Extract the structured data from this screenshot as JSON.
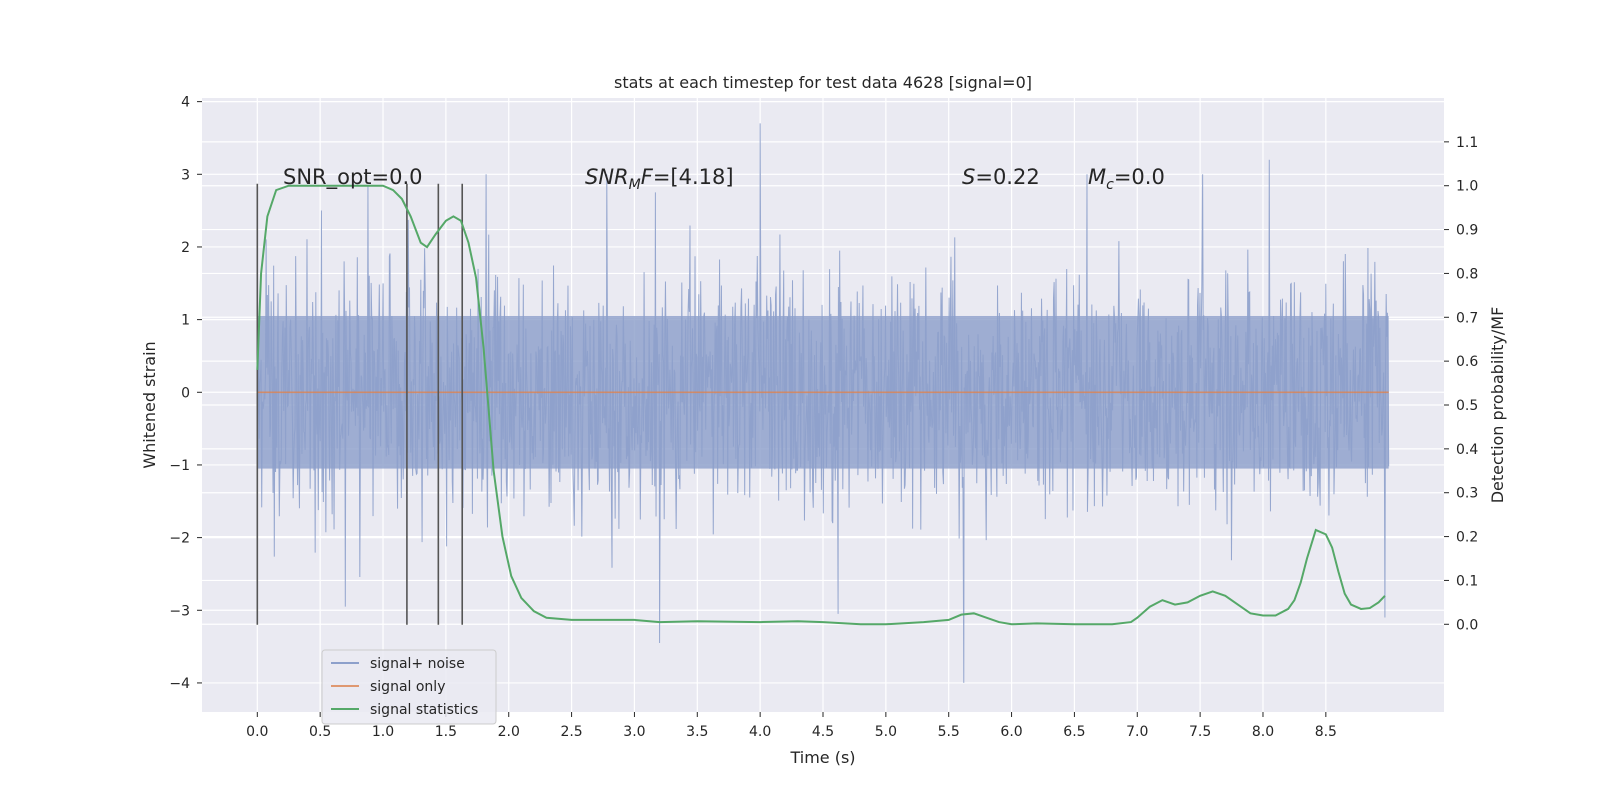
{
  "chart_data": {
    "type": "line",
    "title": "stats at each timestep for test data 4628 [signal=0]",
    "xlabel": "Time (s)",
    "ylabel": "Whitened strain",
    "y2label": "Detection probability/MF",
    "xlim": [
      -0.44,
      9.44
    ],
    "ylim": [
      -4.4,
      4.05
    ],
    "y2lim": [
      -0.2,
      1.2
    ],
    "xticks": [
      0.0,
      0.5,
      1.0,
      1.5,
      2.0,
      2.5,
      3.0,
      3.5,
      4.0,
      4.5,
      5.0,
      5.5,
      6.0,
      6.5,
      7.0,
      7.5,
      8.0,
      8.5
    ],
    "xtick_labels": [
      "0.0",
      "0.5",
      "1.0",
      "1.5",
      "2.0",
      "2.5",
      "3.0",
      "3.5",
      "4.0",
      "4.5",
      "5.0",
      "5.5",
      "6.0",
      "6.5",
      "7.0",
      "7.5",
      "8.0",
      "8.5"
    ],
    "yticks": [
      -4,
      -3,
      -2,
      -1,
      0,
      1,
      2,
      3,
      4
    ],
    "ytick_labels": [
      "−4",
      "−3",
      "−2",
      "−1",
      "0",
      "1",
      "2",
      "3",
      "4"
    ],
    "y2ticks": [
      0.0,
      0.1,
      0.2,
      0.3,
      0.4,
      0.5,
      0.6,
      0.7,
      0.8,
      0.9,
      1.0,
      1.1
    ],
    "y2tick_labels": [
      "0.0",
      "0.1",
      "0.2",
      "0.3",
      "0.4",
      "0.5",
      "0.6",
      "0.7",
      "0.8",
      "0.9",
      "1.0",
      "1.1"
    ],
    "grid": true,
    "legend_position": "lower-left",
    "noise": {
      "t_start": 0.0,
      "t_end": 9.0,
      "num_samples": 1800,
      "core_amplitude": 1.05,
      "typical_peak": 2.1,
      "max": 3.7,
      "min": -4.0,
      "seed": 4628,
      "spikes": [
        {
          "t": 4.0,
          "v": 3.7
        },
        {
          "t": 5.62,
          "v": -4.0
        },
        {
          "t": 3.2,
          "v": -3.45
        },
        {
          "t": 8.05,
          "v": 3.2
        },
        {
          "t": 2.78,
          "v": 3.0
        },
        {
          "t": 8.97,
          "v": -3.1
        },
        {
          "t": 4.62,
          "v": -3.05
        },
        {
          "t": 0.7,
          "v": -2.95
        },
        {
          "t": 0.88,
          "v": 2.85
        },
        {
          "t": 6.6,
          "v": 3.0
        },
        {
          "t": 7.52,
          "v": 3.0
        },
        {
          "t": 1.82,
          "v": 3.0
        }
      ]
    },
    "series": [
      {
        "name": "signal+ noise",
        "color": "#8da0cb",
        "axis": "left"
      },
      {
        "name": "signal only",
        "color": "#dd8452",
        "axis": "left",
        "x": [
          0.0,
          9.0
        ],
        "y": [
          0.0,
          0.0
        ]
      },
      {
        "name": "signal statistics",
        "color": "#55a868",
        "axis": "right",
        "x": [
          0.0,
          0.03,
          0.08,
          0.15,
          0.25,
          0.4,
          0.6,
          0.8,
          1.0,
          1.08,
          1.15,
          1.22,
          1.3,
          1.35,
          1.42,
          1.5,
          1.56,
          1.62,
          1.68,
          1.74,
          1.8,
          1.88,
          1.95,
          2.02,
          2.1,
          2.2,
          2.3,
          2.5,
          2.8,
          3.0,
          3.2,
          3.5,
          4.0,
          4.3,
          4.5,
          4.8,
          5.0,
          5.3,
          5.5,
          5.6,
          5.7,
          5.8,
          5.9,
          6.0,
          6.2,
          6.5,
          6.8,
          6.95,
          7.0,
          7.1,
          7.2,
          7.3,
          7.4,
          7.5,
          7.6,
          7.7,
          7.8,
          7.9,
          8.0,
          8.1,
          8.2,
          8.25,
          8.3,
          8.35,
          8.42,
          8.5,
          8.55,
          8.6,
          8.65,
          8.7,
          8.78,
          8.85,
          8.92,
          8.97
        ],
        "y": [
          0.58,
          0.8,
          0.93,
          0.99,
          1.0,
          1.0,
          1.0,
          1.0,
          1.0,
          0.99,
          0.97,
          0.93,
          0.87,
          0.86,
          0.89,
          0.92,
          0.93,
          0.92,
          0.87,
          0.79,
          0.63,
          0.35,
          0.2,
          0.11,
          0.06,
          0.03,
          0.015,
          0.01,
          0.01,
          0.01,
          0.005,
          0.007,
          0.005,
          0.007,
          0.005,
          0.0,
          0.0,
          0.005,
          0.01,
          0.022,
          0.025,
          0.015,
          0.005,
          0.0,
          0.002,
          0.0,
          0.0,
          0.005,
          0.015,
          0.04,
          0.055,
          0.045,
          0.05,
          0.065,
          0.075,
          0.065,
          0.045,
          0.025,
          0.02,
          0.02,
          0.035,
          0.055,
          0.095,
          0.15,
          0.215,
          0.205,
          0.175,
          0.12,
          0.07,
          0.045,
          0.035,
          0.037,
          0.05,
          0.065
        ]
      }
    ],
    "vlines": [
      0.0,
      1.19,
      1.44,
      1.63
    ],
    "vline_color": "#555555",
    "vline_range": [
      -3.2,
      2.87
    ],
    "annotations": {
      "snr_opt": "SNR_opt=0.0",
      "snr_mf_base": "SNR",
      "snr_mf_sub": "M",
      "snr_mf_f": "F",
      "snr_mf_value": "=[4.18]",
      "s_var": "S",
      "s_value": "=0.22",
      "mc_var": "M",
      "mc_sub": "c",
      "mc_value": "=0.0"
    },
    "legend": [
      {
        "label": "signal+ noise",
        "color": "#8da0cb"
      },
      {
        "label": "signal only",
        "color": "#dd8452"
      },
      {
        "label": "signal statistics",
        "color": "#55a868"
      }
    ]
  },
  "style": {
    "plot_bg": "#eaeaf2",
    "grid_color": "#ffffff",
    "text_color": "#262626"
  }
}
